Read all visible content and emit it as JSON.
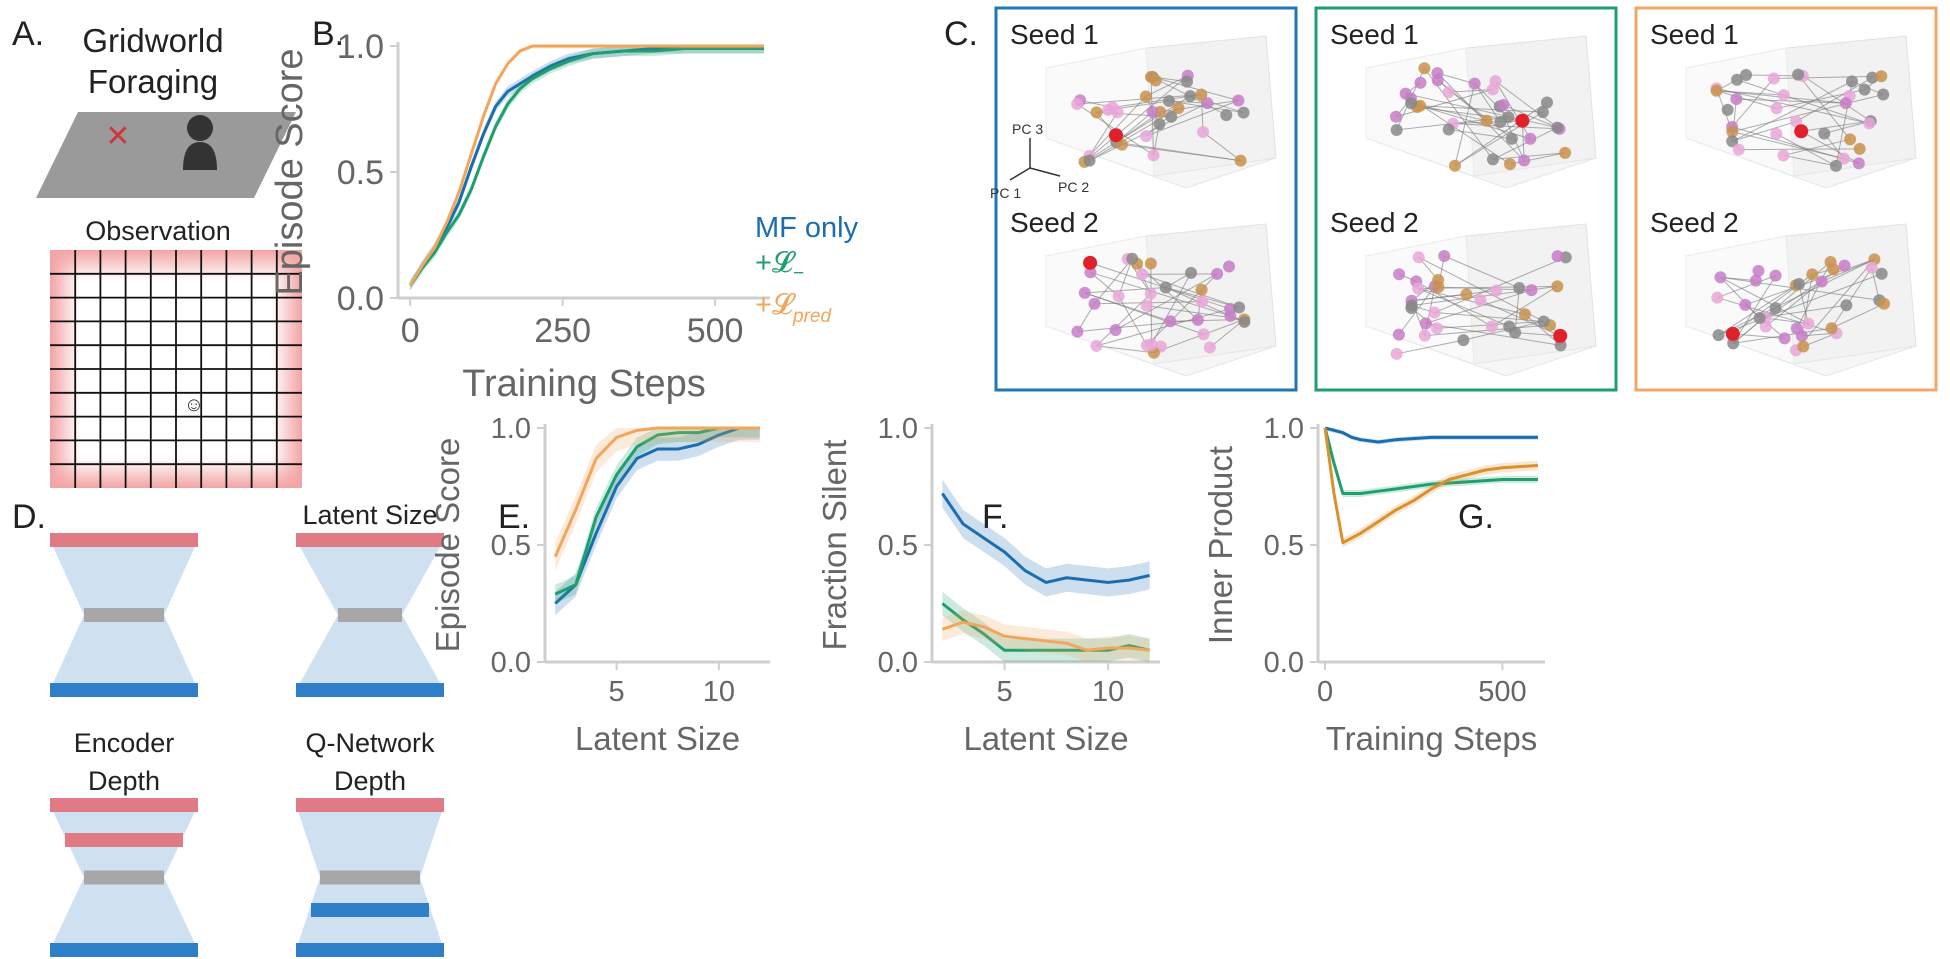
{
  "panel_labels": {
    "a": "A.",
    "b": "B.",
    "c": "C.",
    "d": "D.",
    "e": "E.",
    "f": "F.",
    "g": "G."
  },
  "panel_a": {
    "title_line1": "Gridworld",
    "title_line2": "Foraging",
    "observation_label": "Observation",
    "goal_marker": "✕",
    "agent_glyph": "☺"
  },
  "panel_c": {
    "seed1": "Seed 1",
    "seed2": "Seed 2",
    "axes": [
      "PC 3",
      "PC 1",
      "PC 2"
    ],
    "box_colors": [
      "#1f77b4",
      "#1f9e6e",
      "#f0a868"
    ]
  },
  "panel_d": {
    "labels": [
      "Latent Size",
      "Encoder",
      "Depth",
      "Q-Network",
      "Depth"
    ],
    "colors": {
      "input": "#e07a85",
      "latent": "#a7a7a7",
      "output": "#2f7fc8",
      "body": "#cfe1f1"
    }
  },
  "legend": {
    "mf": "MF only",
    "loss_neg": "+𝓛",
    "loss_neg_sub": "−",
    "loss_pred": "+𝓛",
    "loss_pred_sub": "pred"
  },
  "colors": {
    "mf": "#1a6eb0",
    "neg": "#1f9e6e",
    "pred": "#f2a65a",
    "pred_g": "#d9902f"
  },
  "chart_data": [
    {
      "id": "B",
      "type": "line",
      "xlabel": "Training Steps",
      "ylabel": "Episode Score",
      "xlim": [
        -20,
        590
      ],
      "ylim": [
        0,
        1
      ],
      "xticks": [
        0,
        250,
        500
      ],
      "yticks": [
        0.0,
        0.5,
        1.0
      ],
      "xtick_labels": [
        "0",
        "250",
        "500"
      ],
      "ytick_labels": [
        "0.0",
        "0.5",
        "1.0"
      ],
      "series": [
        {
          "name": "MF only",
          "x": [
            0,
            20,
            40,
            60,
            80,
            100,
            120,
            140,
            160,
            180,
            200,
            230,
            260,
            300,
            350,
            400,
            450,
            500,
            580
          ],
          "y": [
            0.05,
            0.13,
            0.2,
            0.28,
            0.38,
            0.52,
            0.65,
            0.76,
            0.82,
            0.85,
            0.88,
            0.92,
            0.95,
            0.97,
            0.98,
            0.99,
            0.99,
            0.99,
            0.99
          ],
          "band": 0.02
        },
        {
          "name": "+L−",
          "x": [
            0,
            20,
            40,
            60,
            80,
            100,
            120,
            140,
            160,
            180,
            200,
            230,
            260,
            300,
            350,
            400,
            450,
            500,
            580
          ],
          "y": [
            0.05,
            0.12,
            0.18,
            0.26,
            0.33,
            0.43,
            0.56,
            0.68,
            0.77,
            0.83,
            0.87,
            0.91,
            0.94,
            0.97,
            0.98,
            0.98,
            0.99,
            0.99,
            0.99
          ],
          "band": 0.02
        },
        {
          "name": "+Lpred",
          "x": [
            0,
            20,
            40,
            60,
            80,
            100,
            120,
            140,
            160,
            180,
            200,
            220,
            240,
            300,
            400,
            580
          ],
          "y": [
            0.05,
            0.13,
            0.2,
            0.3,
            0.42,
            0.57,
            0.72,
            0.85,
            0.93,
            0.98,
            1.0,
            1.0,
            1.0,
            1.0,
            1.0,
            1.0
          ],
          "band": 0.01
        }
      ]
    },
    {
      "id": "E",
      "type": "line",
      "xlabel": "Latent Size",
      "ylabel": "Episode Score",
      "xlim": [
        1.5,
        12.5
      ],
      "ylim": [
        0,
        1
      ],
      "xticks": [
        5,
        10
      ],
      "yticks": [
        0.0,
        0.5,
        1.0
      ],
      "xtick_labels": [
        "5",
        "10"
      ],
      "ytick_labels": [
        "0.0",
        "0.5",
        "1.0"
      ],
      "series": [
        {
          "name": "MF only",
          "x": [
            2,
            3,
            4,
            5,
            6,
            7,
            8,
            9,
            10,
            11,
            12
          ],
          "y": [
            0.25,
            0.33,
            0.55,
            0.75,
            0.87,
            0.91,
            0.91,
            0.93,
            0.97,
            1.0,
            1.0
          ],
          "band": 0.05
        },
        {
          "name": "+L−",
          "x": [
            2,
            3,
            4,
            5,
            6,
            7,
            8,
            9,
            10,
            11,
            12
          ],
          "y": [
            0.29,
            0.33,
            0.62,
            0.8,
            0.92,
            0.97,
            0.98,
            0.98,
            1.0,
            1.0,
            1.0
          ],
          "band": 0.04
        },
        {
          "name": "+Lpred",
          "x": [
            2,
            3,
            4,
            5,
            6,
            7,
            8,
            9,
            10,
            11,
            12
          ],
          "y": [
            0.45,
            0.65,
            0.87,
            0.96,
            0.99,
            1.0,
            1.0,
            1.0,
            1.0,
            1.0,
            1.0
          ],
          "band": 0.06
        }
      ]
    },
    {
      "id": "F",
      "type": "line",
      "xlabel": "Latent Size",
      "ylabel": "Fraction Silent",
      "xlim": [
        1.5,
        12.5
      ],
      "ylim": [
        0,
        1
      ],
      "xticks": [
        5,
        10
      ],
      "yticks": [
        0.0,
        0.5,
        1.0
      ],
      "xtick_labels": [
        "5",
        "10"
      ],
      "ytick_labels": [
        "0.0",
        "0.5",
        "1.0"
      ],
      "series": [
        {
          "name": "MF only",
          "x": [
            2,
            3,
            4,
            5,
            6,
            7,
            8,
            9,
            10,
            11,
            12
          ],
          "y": [
            0.72,
            0.59,
            0.53,
            0.47,
            0.39,
            0.34,
            0.36,
            0.35,
            0.34,
            0.35,
            0.37
          ],
          "band": 0.06
        },
        {
          "name": "+L−",
          "x": [
            2,
            3,
            4,
            5,
            6,
            7,
            8,
            9,
            10,
            11,
            12
          ],
          "y": [
            0.25,
            0.18,
            0.12,
            0.05,
            0.05,
            0.05,
            0.05,
            0.05,
            0.05,
            0.07,
            0.05
          ],
          "band": 0.05
        },
        {
          "name": "+Lpred",
          "x": [
            2,
            3,
            4,
            5,
            6,
            7,
            8,
            9,
            10,
            11,
            12
          ],
          "y": [
            0.14,
            0.17,
            0.15,
            0.11,
            0.1,
            0.09,
            0.08,
            0.05,
            0.06,
            0.06,
            0.05
          ],
          "band": 0.05
        }
      ]
    },
    {
      "id": "G",
      "type": "line",
      "xlabel": "Training Steps",
      "ylabel": "Inner Product",
      "xlim": [
        -20,
        620
      ],
      "ylim": [
        0,
        1
      ],
      "xticks": [
        0,
        500
      ],
      "yticks": [
        0.0,
        0.5,
        1.0
      ],
      "xtick_labels": [
        "0",
        "500"
      ],
      "ytick_labels": [
        "0.0",
        "0.5",
        "1.0"
      ],
      "series": [
        {
          "name": "MF only",
          "x": [
            0,
            25,
            50,
            75,
            100,
            150,
            200,
            300,
            400,
            500,
            600
          ],
          "y": [
            1.0,
            0.99,
            0.98,
            0.96,
            0.95,
            0.94,
            0.95,
            0.96,
            0.96,
            0.96,
            0.96
          ],
          "band": 0.01
        },
        {
          "name": "+L−",
          "x": [
            0,
            25,
            50,
            100,
            150,
            200,
            300,
            400,
            500,
            600
          ],
          "y": [
            1.0,
            0.85,
            0.72,
            0.72,
            0.73,
            0.74,
            0.76,
            0.77,
            0.78,
            0.78
          ],
          "band": 0.015
        },
        {
          "name": "+Lpred",
          "x": [
            0,
            25,
            50,
            100,
            150,
            200,
            250,
            300,
            350,
            400,
            450,
            500,
            600
          ],
          "y": [
            1.0,
            0.72,
            0.51,
            0.55,
            0.6,
            0.65,
            0.69,
            0.74,
            0.78,
            0.8,
            0.82,
            0.83,
            0.84
          ],
          "band": 0.02
        }
      ]
    }
  ]
}
